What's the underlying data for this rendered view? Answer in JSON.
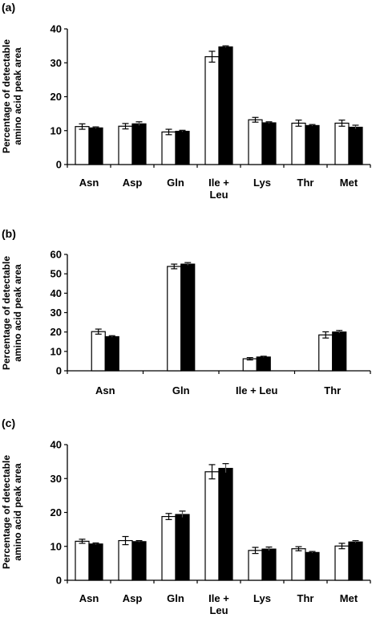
{
  "chart_data": [
    {
      "type": "bar",
      "panel_label": "(a)",
      "ylabel": [
        "Percentage of detectable",
        "amino acid peak area"
      ],
      "ylim": [
        0,
        40
      ],
      "yticks": [
        "0",
        "10",
        "20",
        "30",
        "40"
      ],
      "categories": [
        [
          "Asn"
        ],
        [
          "Asp"
        ],
        [
          "Gln"
        ],
        [
          "Ile +",
          "Leu"
        ],
        [
          "Lys"
        ],
        [
          "Thr"
        ],
        [
          "Met"
        ]
      ],
      "series": [
        {
          "fill": "#ffffff",
          "values": [
            11.2,
            11.3,
            9.6,
            31.8,
            13.2,
            12.2,
            12.2
          ],
          "errors": [
            0.8,
            0.8,
            0.8,
            1.6,
            0.7,
            0.9,
            0.9
          ]
        },
        {
          "fill": "#000000",
          "values": [
            10.8,
            12.0,
            9.8,
            34.7,
            12.3,
            11.5,
            11.0
          ],
          "errors": [
            0.3,
            0.6,
            0.3,
            0.3,
            0.3,
            0.3,
            0.6
          ]
        }
      ],
      "grid": false,
      "legend": "none"
    },
    {
      "type": "bar",
      "panel_label": "(b)",
      "ylabel": [
        "Percentage of detectable",
        "amino acid peak area"
      ],
      "ylim": [
        0,
        60
      ],
      "yticks": [
        "0",
        "10",
        "20",
        "30",
        "40",
        "50",
        "60"
      ],
      "categories": [
        [
          "Asn"
        ],
        [
          "Gln"
        ],
        [
          "Ile + Leu"
        ],
        [
          "Thr"
        ]
      ],
      "series": [
        {
          "fill": "#ffffff",
          "values": [
            20.2,
            53.8,
            6.2,
            18.5
          ],
          "errors": [
            1.3,
            1.2,
            0.6,
            1.6
          ]
        },
        {
          "fill": "#000000",
          "values": [
            17.6,
            55.0,
            7.1,
            20.0
          ],
          "errors": [
            0.5,
            0.8,
            0.4,
            0.8
          ]
        }
      ],
      "grid": false,
      "legend": "none"
    },
    {
      "type": "bar",
      "panel_label": "(c)",
      "ylabel": [
        "Percentage of detectable",
        "amino acid peak area"
      ],
      "ylim": [
        0,
        40
      ],
      "yticks": [
        "0",
        "10",
        "20",
        "30",
        "40"
      ],
      "categories": [
        [
          "Asn"
        ],
        [
          "Asp"
        ],
        [
          "Gln"
        ],
        [
          "Ile +",
          "Leu"
        ],
        [
          "Lys"
        ],
        [
          "Thr"
        ],
        [
          "Met"
        ]
      ],
      "series": [
        {
          "fill": "#ffffff",
          "values": [
            11.5,
            11.7,
            18.8,
            32.0,
            8.8,
            9.3,
            10.1
          ],
          "errors": [
            0.6,
            1.2,
            0.9,
            2.1,
            0.9,
            0.6,
            0.8
          ]
        },
        {
          "fill": "#000000",
          "values": [
            10.7,
            11.4,
            19.4,
            33.0,
            9.2,
            8.2,
            11.3
          ],
          "errors": [
            0.3,
            0.3,
            1.0,
            1.4,
            0.6,
            0.3,
            0.4
          ]
        }
      ],
      "grid": false,
      "legend": "none"
    }
  ]
}
